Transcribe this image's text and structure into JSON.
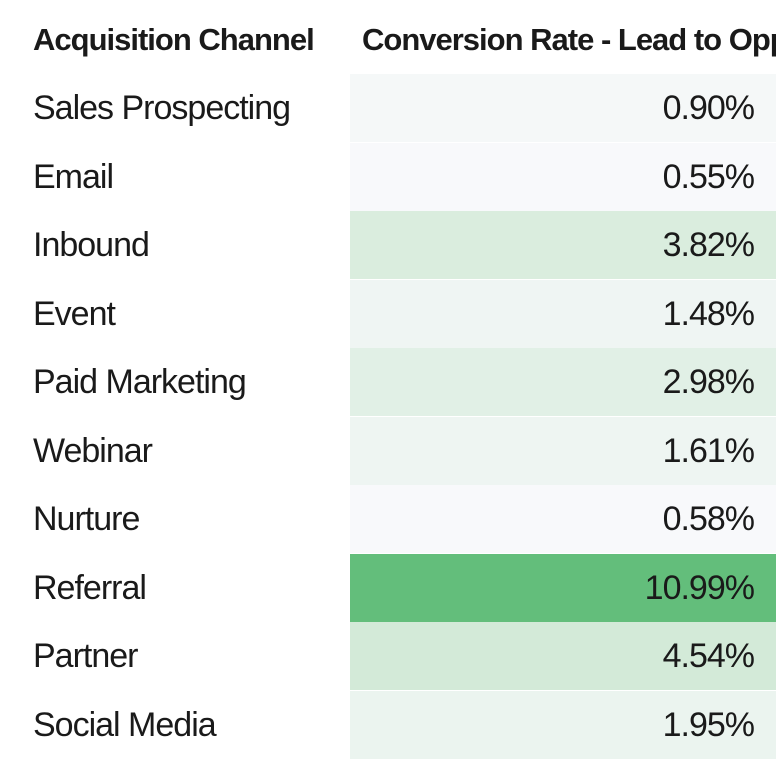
{
  "chart_data": {
    "type": "table",
    "columns": [
      "Acquisition Channel",
      "Conversion Rate - Lead to Opp"
    ],
    "rows": [
      {
        "channel": "Sales Prospecting",
        "rate_text": "0.90%",
        "rate": 0.9
      },
      {
        "channel": "Email",
        "rate_text": "0.55%",
        "rate": 0.55
      },
      {
        "channel": "Inbound",
        "rate_text": "3.82%",
        "rate": 3.82
      },
      {
        "channel": "Event",
        "rate_text": "1.48%",
        "rate": 1.48
      },
      {
        "channel": "Paid Marketing",
        "rate_text": "2.98%",
        "rate": 2.98
      },
      {
        "channel": "Webinar",
        "rate_text": "1.61%",
        "rate": 1.61
      },
      {
        "channel": "Nurture",
        "rate_text": "0.58%",
        "rate": 0.58
      },
      {
        "channel": "Referral",
        "rate_text": "10.99%",
        "rate": 10.99
      },
      {
        "channel": "Partner",
        "rate_text": "4.54%",
        "rate": 4.54
      },
      {
        "channel": "Social Media",
        "rate_text": "1.95%",
        "rate": 1.95
      }
    ],
    "heatmap_colors": {
      "low": "#f8f9fb",
      "mid": "#d3ead8",
      "high": "#63be7b"
    },
    "unit": "%"
  }
}
